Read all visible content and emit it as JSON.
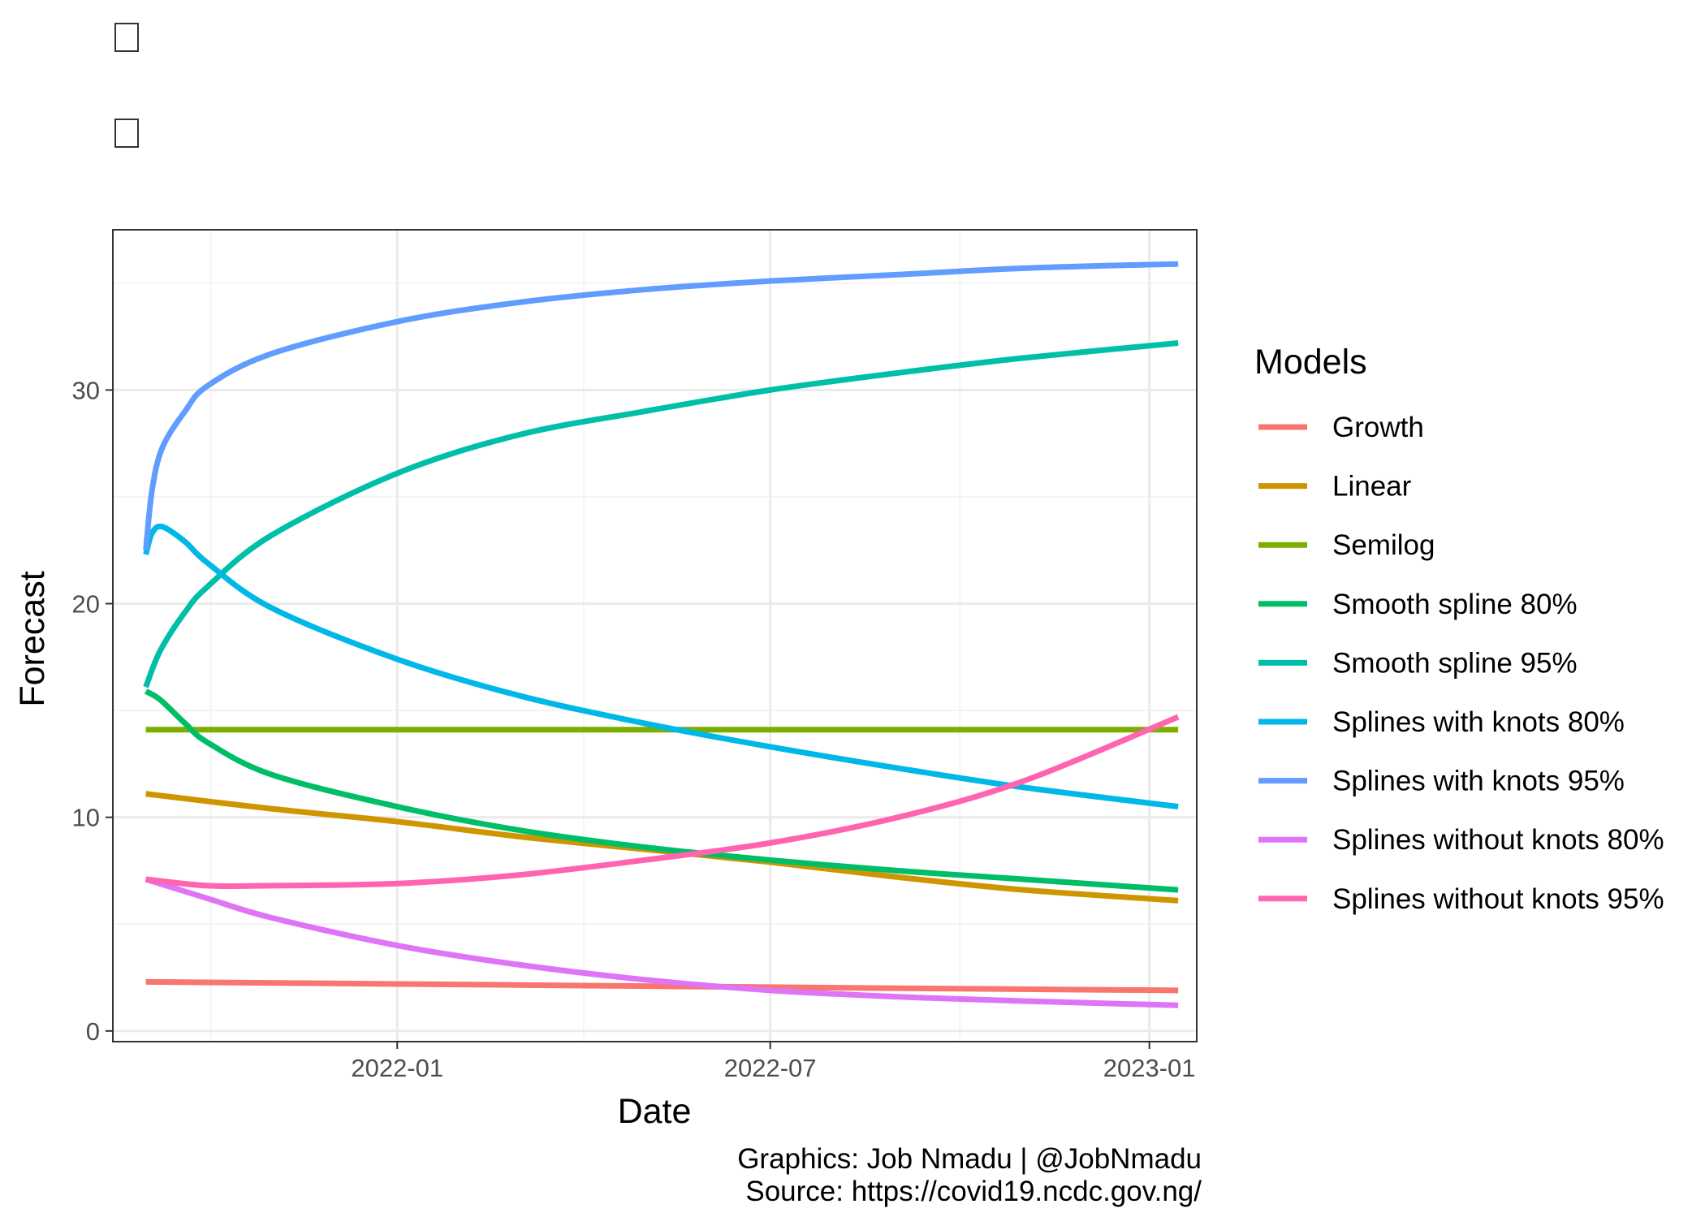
{
  "title_glyphs": [
    "",
    ""
  ],
  "chart_data": {
    "type": "line",
    "xlabel": "Date",
    "ylabel": "Forecast",
    "x_range": [
      "2021-08-16",
      "2023-01-24"
    ],
    "x_ticks": [
      "2022-01-01",
      "2022-07-01",
      "2023-01-01"
    ],
    "x_tick_labels": [
      "2022-01",
      "2022-07",
      "2023-01"
    ],
    "ylim": [
      -0.5,
      37.5
    ],
    "y_ticks": [
      0,
      10,
      20,
      30
    ],
    "grid": true,
    "legend": {
      "title": "Models",
      "position": "right"
    },
    "series": [
      {
        "name": "Growth",
        "color": "#F8766D",
        "points": [
          [
            "2021-09-01",
            2.3
          ],
          [
            "2022-01-01",
            2.2
          ],
          [
            "2022-05-01",
            2.1
          ],
          [
            "2022-09-01",
            2.0
          ],
          [
            "2023-01-15",
            1.9
          ]
        ]
      },
      {
        "name": "Linear",
        "color": "#CD9600",
        "points": [
          [
            "2021-09-01",
            11.1
          ],
          [
            "2021-11-01",
            10.4
          ],
          [
            "2022-01-01",
            9.8
          ],
          [
            "2022-03-01",
            9.1
          ],
          [
            "2022-05-01",
            8.5
          ],
          [
            "2022-07-01",
            7.9
          ],
          [
            "2022-09-01",
            7.2
          ],
          [
            "2022-11-01",
            6.6
          ],
          [
            "2023-01-15",
            6.1
          ]
        ]
      },
      {
        "name": "Semilog",
        "color": "#7CAE00",
        "points": [
          [
            "2021-09-01",
            14.1
          ],
          [
            "2022-05-01",
            14.1
          ],
          [
            "2023-01-15",
            14.1
          ]
        ]
      },
      {
        "name": "Smooth spline 80%",
        "color": "#00BE67",
        "points": [
          [
            "2021-09-01",
            15.9
          ],
          [
            "2021-09-08",
            15.5
          ],
          [
            "2021-09-20",
            14.4
          ],
          [
            "2021-10-01",
            13.5
          ],
          [
            "2021-11-01",
            12.0
          ],
          [
            "2022-01-01",
            10.5
          ],
          [
            "2022-03-01",
            9.4
          ],
          [
            "2022-05-01",
            8.6
          ],
          [
            "2022-07-01",
            8.0
          ],
          [
            "2022-09-01",
            7.5
          ],
          [
            "2022-11-01",
            7.1
          ],
          [
            "2023-01-15",
            6.6
          ]
        ]
      },
      {
        "name": "Smooth spline 95%",
        "color": "#00BFA8",
        "points": [
          [
            "2021-09-01",
            16.1
          ],
          [
            "2021-09-08",
            17.8
          ],
          [
            "2021-09-20",
            19.6
          ],
          [
            "2021-10-01",
            20.8
          ],
          [
            "2021-11-01",
            23.2
          ],
          [
            "2022-01-01",
            26.1
          ],
          [
            "2022-03-01",
            27.9
          ],
          [
            "2022-05-01",
            29.0
          ],
          [
            "2022-07-01",
            30.0
          ],
          [
            "2022-09-01",
            30.8
          ],
          [
            "2022-11-01",
            31.5
          ],
          [
            "2023-01-15",
            32.2
          ]
        ]
      },
      {
        "name": "Splines with knots 80%",
        "color": "#00B8E7",
        "points": [
          [
            "2021-09-01",
            22.3
          ],
          [
            "2021-09-04",
            23.3
          ],
          [
            "2021-09-09",
            23.6
          ],
          [
            "2021-09-20",
            22.9
          ],
          [
            "2021-10-01",
            21.9
          ],
          [
            "2021-11-01",
            19.8
          ],
          [
            "2022-01-01",
            17.4
          ],
          [
            "2022-03-01",
            15.7
          ],
          [
            "2022-05-01",
            14.4
          ],
          [
            "2022-07-01",
            13.3
          ],
          [
            "2022-09-01",
            12.3
          ],
          [
            "2022-11-01",
            11.4
          ],
          [
            "2023-01-15",
            10.5
          ]
        ]
      },
      {
        "name": "Splines with knots 95%",
        "color": "#619CFF",
        "points": [
          [
            "2021-09-01",
            22.5
          ],
          [
            "2021-09-04",
            25.3
          ],
          [
            "2021-09-09",
            27.3
          ],
          [
            "2021-09-20",
            29.0
          ],
          [
            "2021-10-01",
            30.2
          ],
          [
            "2021-11-01",
            31.7
          ],
          [
            "2022-01-01",
            33.2
          ],
          [
            "2022-03-01",
            34.1
          ],
          [
            "2022-05-01",
            34.7
          ],
          [
            "2022-07-01",
            35.1
          ],
          [
            "2022-09-01",
            35.4
          ],
          [
            "2022-11-01",
            35.7
          ],
          [
            "2023-01-15",
            35.9
          ]
        ]
      },
      {
        "name": "Splines without knots 80%",
        "color": "#DF74F7",
        "points": [
          [
            "2021-09-01",
            7.1
          ],
          [
            "2021-10-01",
            6.2
          ],
          [
            "2021-11-01",
            5.3
          ],
          [
            "2022-01-01",
            4.0
          ],
          [
            "2022-03-01",
            3.1
          ],
          [
            "2022-05-01",
            2.4
          ],
          [
            "2022-07-01",
            1.9
          ],
          [
            "2022-09-01",
            1.6
          ],
          [
            "2022-11-01",
            1.4
          ],
          [
            "2023-01-15",
            1.2
          ]
        ]
      },
      {
        "name": "Splines without knots 95%",
        "color": "#FF64B0",
        "points": [
          [
            "2021-09-01",
            7.1
          ],
          [
            "2021-10-01",
            6.8
          ],
          [
            "2021-11-01",
            6.8
          ],
          [
            "2022-01-01",
            6.9
          ],
          [
            "2022-03-01",
            7.3
          ],
          [
            "2022-05-01",
            8.0
          ],
          [
            "2022-07-01",
            8.8
          ],
          [
            "2022-09-01",
            10.0
          ],
          [
            "2022-11-01",
            11.7
          ],
          [
            "2023-01-15",
            14.7
          ]
        ]
      }
    ]
  },
  "caption": {
    "graphics": "Graphics: Job Nmadu | @JobNmadu",
    "source": "Source: https://covid19.ncdc.gov.ng/"
  }
}
